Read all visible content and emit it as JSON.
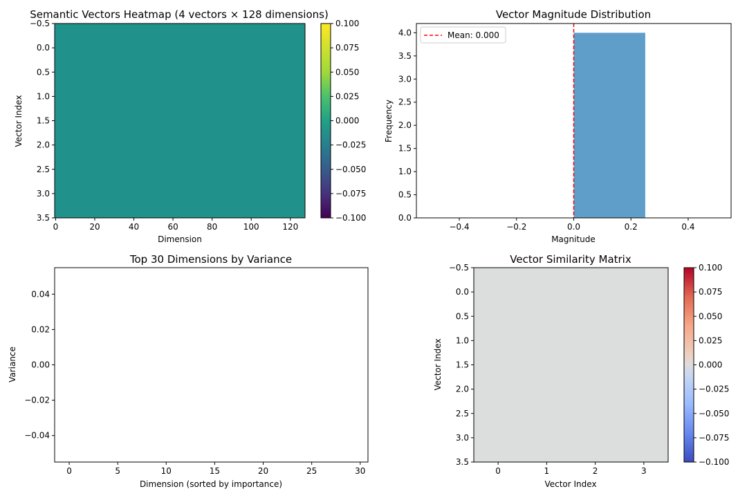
{
  "chart_data": [
    {
      "type": "heatmap",
      "title": "Semantic Vectors Heatmap (4 vectors × 128 dimensions)",
      "xlabel": "Dimension",
      "ylabel": "Vector Index",
      "rows": 4,
      "cols": 128,
      "fill_value": 0.0,
      "fill_color": "#21918c",
      "xlim": [
        -0.5,
        127.5
      ],
      "ylim": [
        3.5,
        -0.5
      ],
      "xticks": [
        0,
        20,
        40,
        60,
        80,
        100,
        120
      ],
      "xtick_labels": [
        "0",
        "20",
        "40",
        "60",
        "80",
        "100",
        "120"
      ],
      "yticks": [
        -0.5,
        0.0,
        0.5,
        1.0,
        1.5,
        2.0,
        2.5,
        3.0,
        3.5
      ],
      "ytick_labels": [
        "−0.5",
        "0.0",
        "0.5",
        "1.0",
        "1.5",
        "2.0",
        "2.5",
        "3.0",
        "3.5"
      ],
      "colorbar": {
        "colormap": "viridis",
        "range": [
          -0.1,
          0.1
        ],
        "ticks": [
          0.1,
          0.075,
          0.05,
          0.025,
          0.0,
          -0.025,
          -0.05,
          -0.075,
          -0.1
        ],
        "tick_labels": [
          "0.100",
          "0.075",
          "0.050",
          "0.025",
          "0.000",
          "−0.025",
          "−0.050",
          "−0.075",
          "−0.100"
        ]
      }
    },
    {
      "type": "bar",
      "title": "Vector Magnitude Distribution",
      "xlabel": "Magnitude",
      "ylabel": "Frequency",
      "bins": [
        {
          "x0": 0.0,
          "x1": 0.25,
          "count": 4
        }
      ],
      "bar_color": "#5f9ec9",
      "xlim": [
        -0.55,
        0.55
      ],
      "ylim": [
        0,
        4.2
      ],
      "xticks": [
        -0.4,
        -0.2,
        0.0,
        0.2,
        0.4
      ],
      "xtick_labels": [
        "−0.4",
        "−0.2",
        "0.0",
        "0.2",
        "0.4"
      ],
      "yticks": [
        0,
        0.5,
        1,
        1.5,
        2,
        2.5,
        3,
        3.5,
        4
      ],
      "ytick_labels": [
        "0.0",
        "0.5",
        "1.0",
        "1.5",
        "2.0",
        "2.5",
        "3.0",
        "3.5",
        "4.0"
      ],
      "mean_line": {
        "x": 0.0,
        "color": "#ff0000",
        "label": "Mean: 0.000"
      },
      "legend_position": "top-left"
    },
    {
      "type": "bar",
      "title": "Top 30 Dimensions by Variance",
      "xlabel": "Dimension (sorted by importance)",
      "ylabel": "Variance",
      "values": [],
      "xlim": [
        -1.5,
        30.8
      ],
      "ylim": [
        -0.055,
        0.055
      ],
      "xticks": [
        0,
        5,
        10,
        15,
        20,
        25,
        30
      ],
      "xtick_labels": [
        "0",
        "5",
        "10",
        "15",
        "20",
        "25",
        "30"
      ],
      "yticks": [
        0.04,
        0.02,
        0.0,
        -0.02,
        -0.04
      ],
      "ytick_labels": [
        "0.04",
        "0.02",
        "0.00",
        "−0.02",
        "−0.04"
      ]
    },
    {
      "type": "heatmap",
      "title": "Vector Similarity Matrix",
      "xlabel": "Vector Index",
      "ylabel": "Vector Index",
      "rows": 4,
      "cols": 4,
      "fill_value": 0.0,
      "fill_color": "#dcdddd",
      "xlim": [
        -0.5,
        3.5
      ],
      "ylim": [
        3.5,
        -0.5
      ],
      "xticks": [
        0,
        1,
        2,
        3
      ],
      "xtick_labels": [
        "0",
        "1",
        "2",
        "3"
      ],
      "yticks": [
        -0.5,
        0.0,
        0.5,
        1.0,
        1.5,
        2.0,
        2.5,
        3.0,
        3.5
      ],
      "ytick_labels": [
        "−0.5",
        "0.0",
        "0.5",
        "1.0",
        "1.5",
        "2.0",
        "2.5",
        "3.0",
        "3.5"
      ],
      "colorbar": {
        "colormap": "coolwarm",
        "range": [
          -0.1,
          0.1
        ],
        "ticks": [
          0.1,
          0.075,
          0.05,
          0.025,
          0.0,
          -0.025,
          -0.05,
          -0.075,
          -0.1
        ],
        "tick_labels": [
          "0.100",
          "0.075",
          "0.050",
          "0.025",
          "0.000",
          "−0.025",
          "−0.050",
          "−0.075",
          "−0.100"
        ]
      }
    }
  ]
}
